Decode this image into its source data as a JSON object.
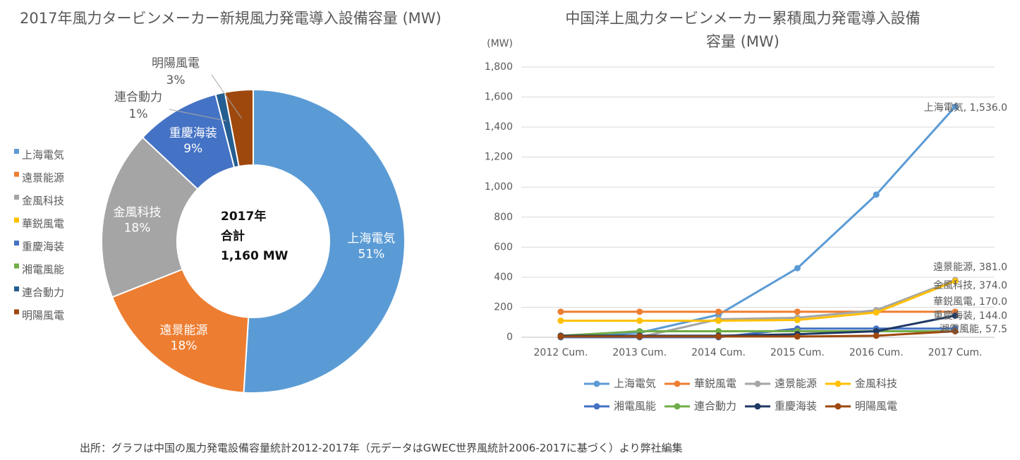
{
  "colors": {
    "shanghai": "#5B9BD5",
    "yuanjing": "#ED7D31",
    "goldwind": "#A5A5A5",
    "sinovel": "#FFC000",
    "csic": "#4472C4",
    "xemc": "#70AD47",
    "envision_united": "#255E91",
    "mingyang": "#9E480E",
    "navy": "#1F3864"
  },
  "chart_data": [
    {
      "type": "pie",
      "title": "2017年風力タービンメーカー新規風力発電導入設備容量 (MW)",
      "center_label": [
        "2017年",
        "合計",
        "1,160 MW"
      ],
      "legend_position": "left",
      "slices": [
        {
          "name": "上海電気",
          "percent": 51,
          "label": "上海電気\n51%",
          "label_inside": true,
          "color": "#5B9BD5"
        },
        {
          "name": "遠景能源",
          "percent": 18,
          "label": "遠景能源\n18%",
          "label_inside": true,
          "color": "#ED7D31"
        },
        {
          "name": "金風科技",
          "percent": 18,
          "label": "金風科技\n18%",
          "label_inside": true,
          "color": "#A5A5A5"
        },
        {
          "name": "華鋭風電",
          "percent": 0,
          "label": "",
          "label_inside": true,
          "color": "#FFC000"
        },
        {
          "name": "重慶海装",
          "percent": 9,
          "label": "重慶海装\n9%",
          "label_inside": true,
          "color": "#4472C4"
        },
        {
          "name": "湘電風能",
          "percent": 0,
          "label": "",
          "label_inside": true,
          "color": "#70AD47"
        },
        {
          "name": "連合動力",
          "percent": 1,
          "label": "連合動力\n1%",
          "label_inside": false,
          "color": "#255E91"
        },
        {
          "name": "明陽風電",
          "percent": 3,
          "label": "明陽風電\n3%",
          "label_inside": false,
          "color": "#9E480E"
        }
      ],
      "legend": [
        "上海電気",
        "遠景能源",
        "金風科技",
        "華鋭風電",
        "重慶海装",
        "湘電風能",
        "連合動力",
        "明陽風電"
      ]
    },
    {
      "type": "line",
      "title": [
        "中国洋上風力タービンメーカー累積風力発電導入設備",
        "容量 (MW)"
      ],
      "ylabel": "(MW)",
      "ylim": [
        0,
        1800
      ],
      "yticks": [
        0,
        200,
        400,
        600,
        800,
        1000,
        1200,
        1400,
        1600,
        1800
      ],
      "ytick_labels": [
        "0",
        "200",
        "400",
        "600",
        "800",
        "1,000",
        "1,200",
        "1,400",
        "1,600",
        "1,800"
      ],
      "grid": true,
      "categories": [
        "2012 Cum.",
        "2013 Cum.",
        "2014 Cum.",
        "2015 Cum.",
        "2016 Cum.",
        "2017 Cum."
      ],
      "legend_position": "bottom",
      "series": [
        {
          "name": "上海電気",
          "color": "#5B9BD5",
          "values": [
            0,
            30,
            150,
            460,
            950,
            1536
          ]
        },
        {
          "name": "華鋭風電",
          "color": "#ED7D31",
          "values": [
            170,
            170,
            170,
            170,
            170,
            170
          ]
        },
        {
          "name": "遠景能源",
          "color": "#A5A5A5",
          "values": [
            0,
            0,
            120,
            130,
            180,
            381
          ]
        },
        {
          "name": "金風科技",
          "color": "#FFC000",
          "values": [
            110,
            110,
            110,
            115,
            165,
            374
          ]
        },
        {
          "name": "湘電風能",
          "color": "#4472C4",
          "values": [
            0,
            0,
            0,
            57.5,
            57.5,
            57.5
          ]
        },
        {
          "name": "連合動力",
          "color": "#70AD47",
          "values": [
            10,
            40,
            40,
            40,
            40,
            40
          ]
        },
        {
          "name": "重慶海装",
          "color": "#1F3864",
          "values": [
            10,
            10,
            10,
            20,
            40,
            144
          ]
        },
        {
          "name": "明陽風電",
          "color": "#9E480E",
          "values": [
            5,
            5,
            5,
            5,
            10,
            40
          ]
        }
      ],
      "data_labels": [
        {
          "series": "上海電気",
          "text": "上海電気,  1,536.0"
        },
        {
          "series": "遠景能源",
          "text": "遠景能源,  381.0"
        },
        {
          "series": "金風科技",
          "text": "金風科技,  374.0"
        },
        {
          "series": "華鋭風電",
          "text": "華鋭風電,  170.0"
        },
        {
          "series": "重慶海装",
          "text": "重慶海装,  144.0"
        },
        {
          "series": "湘電風能",
          "text": "湘電風能,  57.5"
        }
      ]
    }
  ],
  "source_note": "出所：グラフは中国の風力発電設備容量統計2012-2017年（元データはGWEC世界風統計2006-2017に基づく）より弊社編集"
}
